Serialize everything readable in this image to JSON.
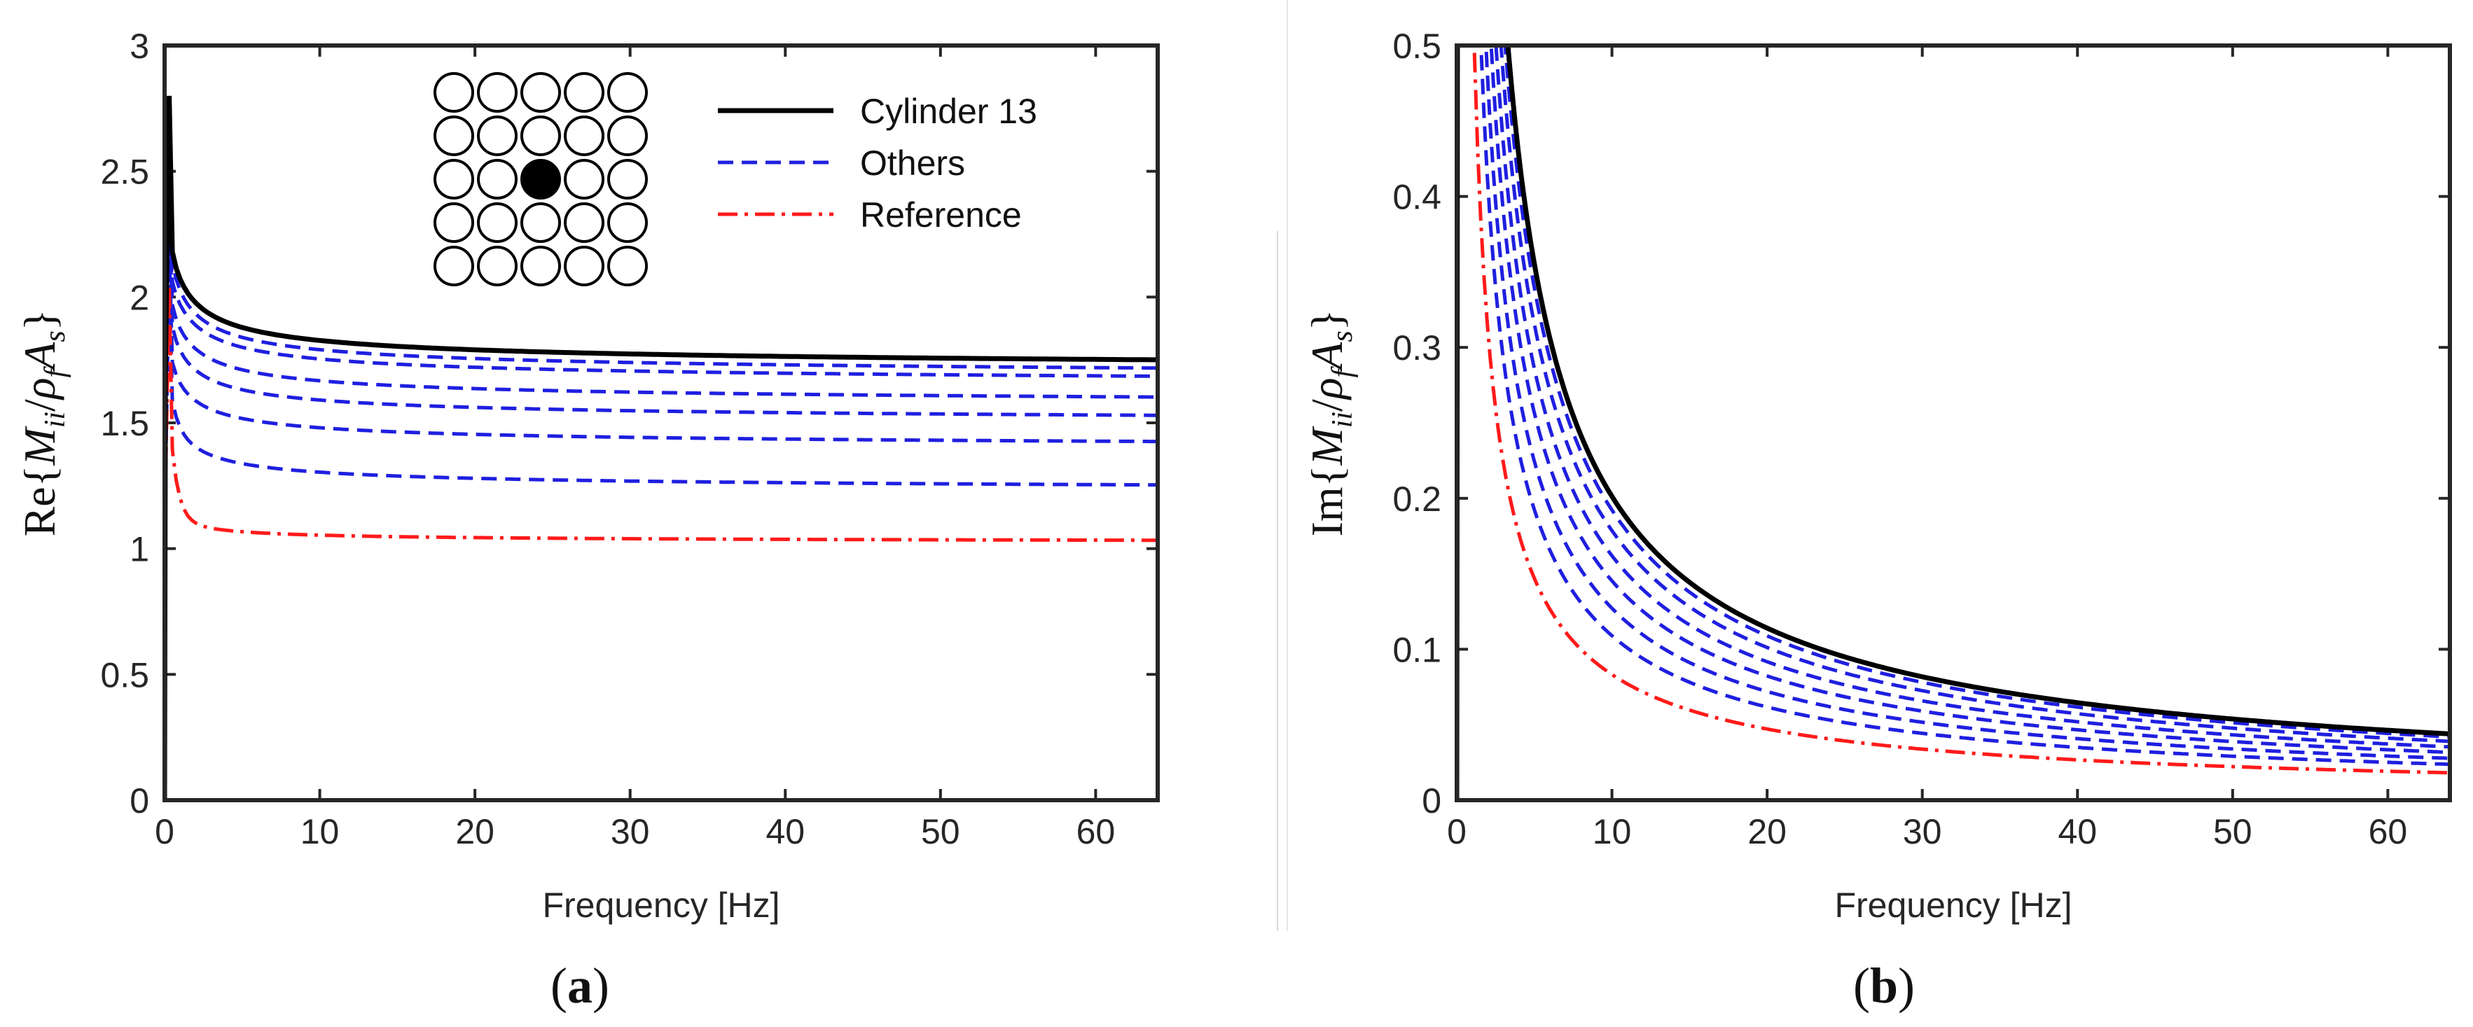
{
  "chart_data": [
    {
      "type": "line",
      "panel": "a",
      "caption": {
        "open": "(",
        "letter": "a",
        "close": ")"
      },
      "xlabel": "Frequency [Hz]",
      "ylabel": {
        "prefix": "Re{",
        "M": "M",
        "ii": "ii",
        "slash": "/",
        "rho": "ρ",
        "f": "f",
        "A": "A",
        "s": "s",
        "suffix": "}"
      },
      "xlim": [
        0,
        64
      ],
      "ylim": [
        0,
        3
      ],
      "xticks": [
        "0",
        "10",
        "20",
        "30",
        "40",
        "50",
        "60"
      ],
      "yticks": [
        "0",
        "0.5",
        "1",
        "1.5",
        "2",
        "2.5",
        "3"
      ],
      "legend": {
        "position": "top-right",
        "entries": [
          "Cylinder 13",
          "Others",
          "Reference"
        ]
      },
      "inset": {
        "rows": 5,
        "cols": 5,
        "highlight": 13
      },
      "series": [
        {
          "name": "Cylinder 13",
          "style": "solid",
          "color": "#000000",
          "asymptote": 1.7,
          "amp": 0.38,
          "peak": 2.8
        },
        {
          "name": "Others",
          "style": "dashed",
          "color": "#1f1fe0",
          "asymptote": 1.67,
          "amp": 0.36,
          "peak": 2.75
        },
        {
          "name": "Others",
          "style": "dashed",
          "color": "#1f1fe0",
          "asymptote": 1.64,
          "amp": 0.34,
          "peak": 2.6
        },
        {
          "name": "Others",
          "style": "dashed",
          "color": "#1f1fe0",
          "asymptote": 1.56,
          "amp": 0.32,
          "peak": 2.5
        },
        {
          "name": "Others",
          "style": "dashed",
          "color": "#1f1fe0",
          "asymptote": 1.49,
          "amp": 0.3,
          "peak": 2.4
        },
        {
          "name": "Others",
          "style": "dashed",
          "color": "#1f1fe0",
          "asymptote": 1.39,
          "amp": 0.27,
          "peak": 2.2
        },
        {
          "name": "Others",
          "style": "dashed",
          "color": "#1f1fe0",
          "asymptote": 1.22,
          "amp": 0.25,
          "peak": 2.1
        },
        {
          "name": "Reference",
          "style": "dashdot",
          "color": "#ff1a1a",
          "asymptote": 1.02,
          "amp": 0.1,
          "peak": 2.05
        }
      ]
    },
    {
      "type": "line",
      "panel": "b",
      "caption": {
        "open": "(",
        "letter": "b",
        "close": ")"
      },
      "xlabel": "Frequency [Hz]",
      "ylabel": {
        "prefix": "Im{",
        "M": "M",
        "ii": "ii",
        "slash": "/",
        "rho": "ρ",
        "f": "f",
        "A": "A",
        "s": "s",
        "suffix": "}"
      },
      "xlim": [
        0,
        64
      ],
      "ylim": [
        0,
        0.5
      ],
      "xticks": [
        "0",
        "10",
        "20",
        "30",
        "40",
        "50",
        "60"
      ],
      "yticks": [
        "0",
        "0.1",
        "0.2",
        "0.3",
        "0.4",
        "0.5"
      ],
      "series": [
        {
          "name": "Cylinder 13",
          "style": "solid",
          "color": "#000000",
          "a": 1.33,
          "b": 0.3
        },
        {
          "name": "Others",
          "style": "dashed",
          "color": "#1f1fe0",
          "a": 1.27,
          "b": 0.29
        },
        {
          "name": "Others",
          "style": "dashed",
          "color": "#1f1fe0",
          "a": 1.18,
          "b": 0.28
        },
        {
          "name": "Others",
          "style": "dashed",
          "color": "#1f1fe0",
          "a": 1.07,
          "b": 0.28
        },
        {
          "name": "Others",
          "style": "dashed",
          "color": "#1f1fe0",
          "a": 0.96,
          "b": 0.27
        },
        {
          "name": "Others",
          "style": "dashed",
          "color": "#1f1fe0",
          "a": 0.84,
          "b": 0.26
        },
        {
          "name": "Others",
          "style": "dashed",
          "color": "#1f1fe0",
          "a": 0.72,
          "b": 0.26
        },
        {
          "name": "Reference",
          "style": "dashdot",
          "color": "#ff1a1a",
          "a": 0.55,
          "b": 0.16
        }
      ]
    }
  ]
}
